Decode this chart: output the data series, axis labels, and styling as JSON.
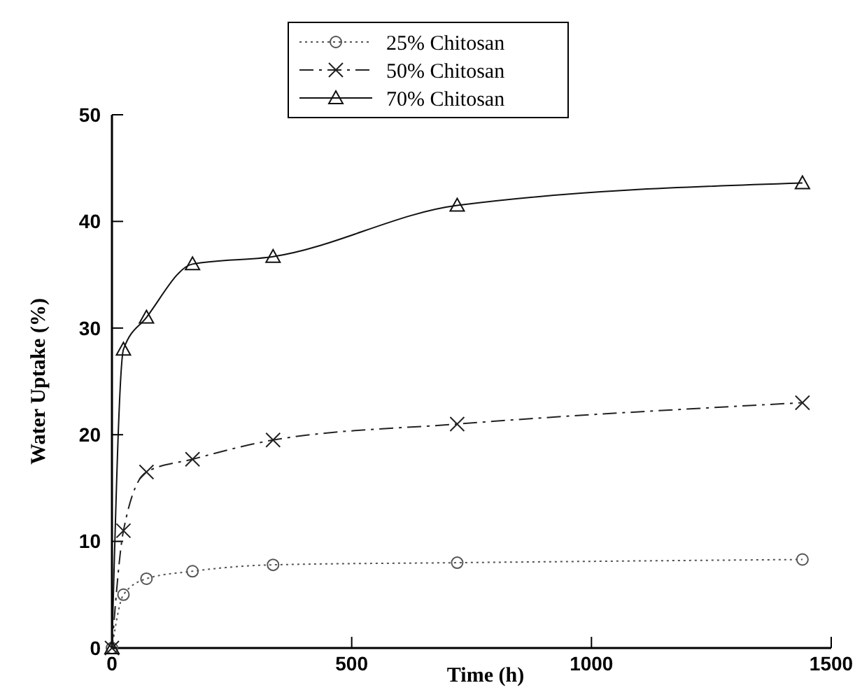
{
  "chart_data": {
    "type": "line",
    "xlabel": "Time (h)",
    "ylabel": "Water Uptake (%)",
    "xlim": [
      0,
      1500
    ],
    "xticks": [
      0,
      500,
      1000,
      1500
    ],
    "ylim": [
      0,
      50
    ],
    "yticks": [
      0,
      10,
      20,
      30,
      40,
      50
    ],
    "grid": false,
    "legend": "top",
    "x": [
      0,
      24,
      72,
      168,
      336,
      720,
      1440
    ],
    "series": [
      {
        "name": "25% Chitosan",
        "color": "#555555",
        "marker": "circle",
        "line_style": "dotted",
        "values": [
          0,
          5,
          6.5,
          7.2,
          7.8,
          8,
          8.3
        ]
      },
      {
        "name": "50% Chitosan",
        "color": "#222222",
        "marker": "cross",
        "line_style": "dashed",
        "values": [
          0,
          11,
          16.5,
          17.7,
          19.5,
          21,
          23
        ]
      },
      {
        "name": "70% Chitosan",
        "color": "#111111",
        "marker": "triangle",
        "line_style": "solid",
        "values": [
          0,
          28,
          31,
          36,
          36.7,
          41.5,
          43.6
        ]
      }
    ]
  }
}
